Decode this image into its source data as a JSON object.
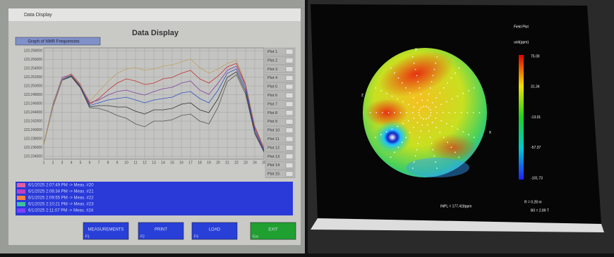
{
  "left_window": {
    "window_title": "Data Display",
    "header": "Data Display",
    "dropdown": "Graph of NMR Frequencies",
    "y_axis_labels": [
      "123.258000",
      "123.256000",
      "123.254000",
      "123.252000",
      "123.250000",
      "123.248000",
      "123.246000",
      "123.244000",
      "123.242000",
      "123.240000",
      "123.238000",
      "123.236000",
      "123.234000"
    ],
    "x_axis_labels": [
      "1",
      "2",
      "3",
      "4",
      "5",
      "6",
      "7",
      "8",
      "9",
      "10",
      "11",
      "12",
      "13",
      "14",
      "15",
      "16",
      "17",
      "18",
      "19",
      "20",
      "21",
      "22",
      "23",
      "24",
      "25"
    ],
    "plot_list": [
      "Plot 1",
      "Plot 2",
      "Plot 3",
      "Plot 4",
      "Plot 5",
      "Plot 6",
      "Plot 7",
      "Plot 8",
      "Plot 9",
      "Plot 10",
      "Plot 11",
      "Plot 12",
      "Plot 13",
      "Plot 14",
      "Plot 15"
    ],
    "log_entries": [
      "6/1/2025 2:07:49 PM -> Meas. #20",
      "6/1/2025 2:08:34 PM -> Meas. #21",
      "6/1/2025 2:09:55 PM -> Meas. #22",
      "6/1/2025 2:10:21 PM -> Meas. #23",
      "6/1/2025 2:11:07 PM -> Meas. #24"
    ],
    "buttons": [
      {
        "label": "MEASUREMENTS",
        "key": "F1"
      },
      {
        "label": "PRINT",
        "key": "F2"
      },
      {
        "label": "LOAD",
        "key": "F3"
      },
      {
        "label": "EXIT",
        "key": "Esc"
      }
    ]
  },
  "right_screen": {
    "title": "Field Plot",
    "unit": "unit(ppm)",
    "colorbar_labels": [
      "75.00",
      "31.34",
      "-13.01",
      "-57.37",
      "-101.73"
    ],
    "axis_x": "x",
    "axis_y": "y",
    "axis_z": "z",
    "radius": "R = 0.28 m",
    "inhomogeneity": "INPL = 177.418ppm",
    "field": "B0 = 2.89 T"
  }
}
